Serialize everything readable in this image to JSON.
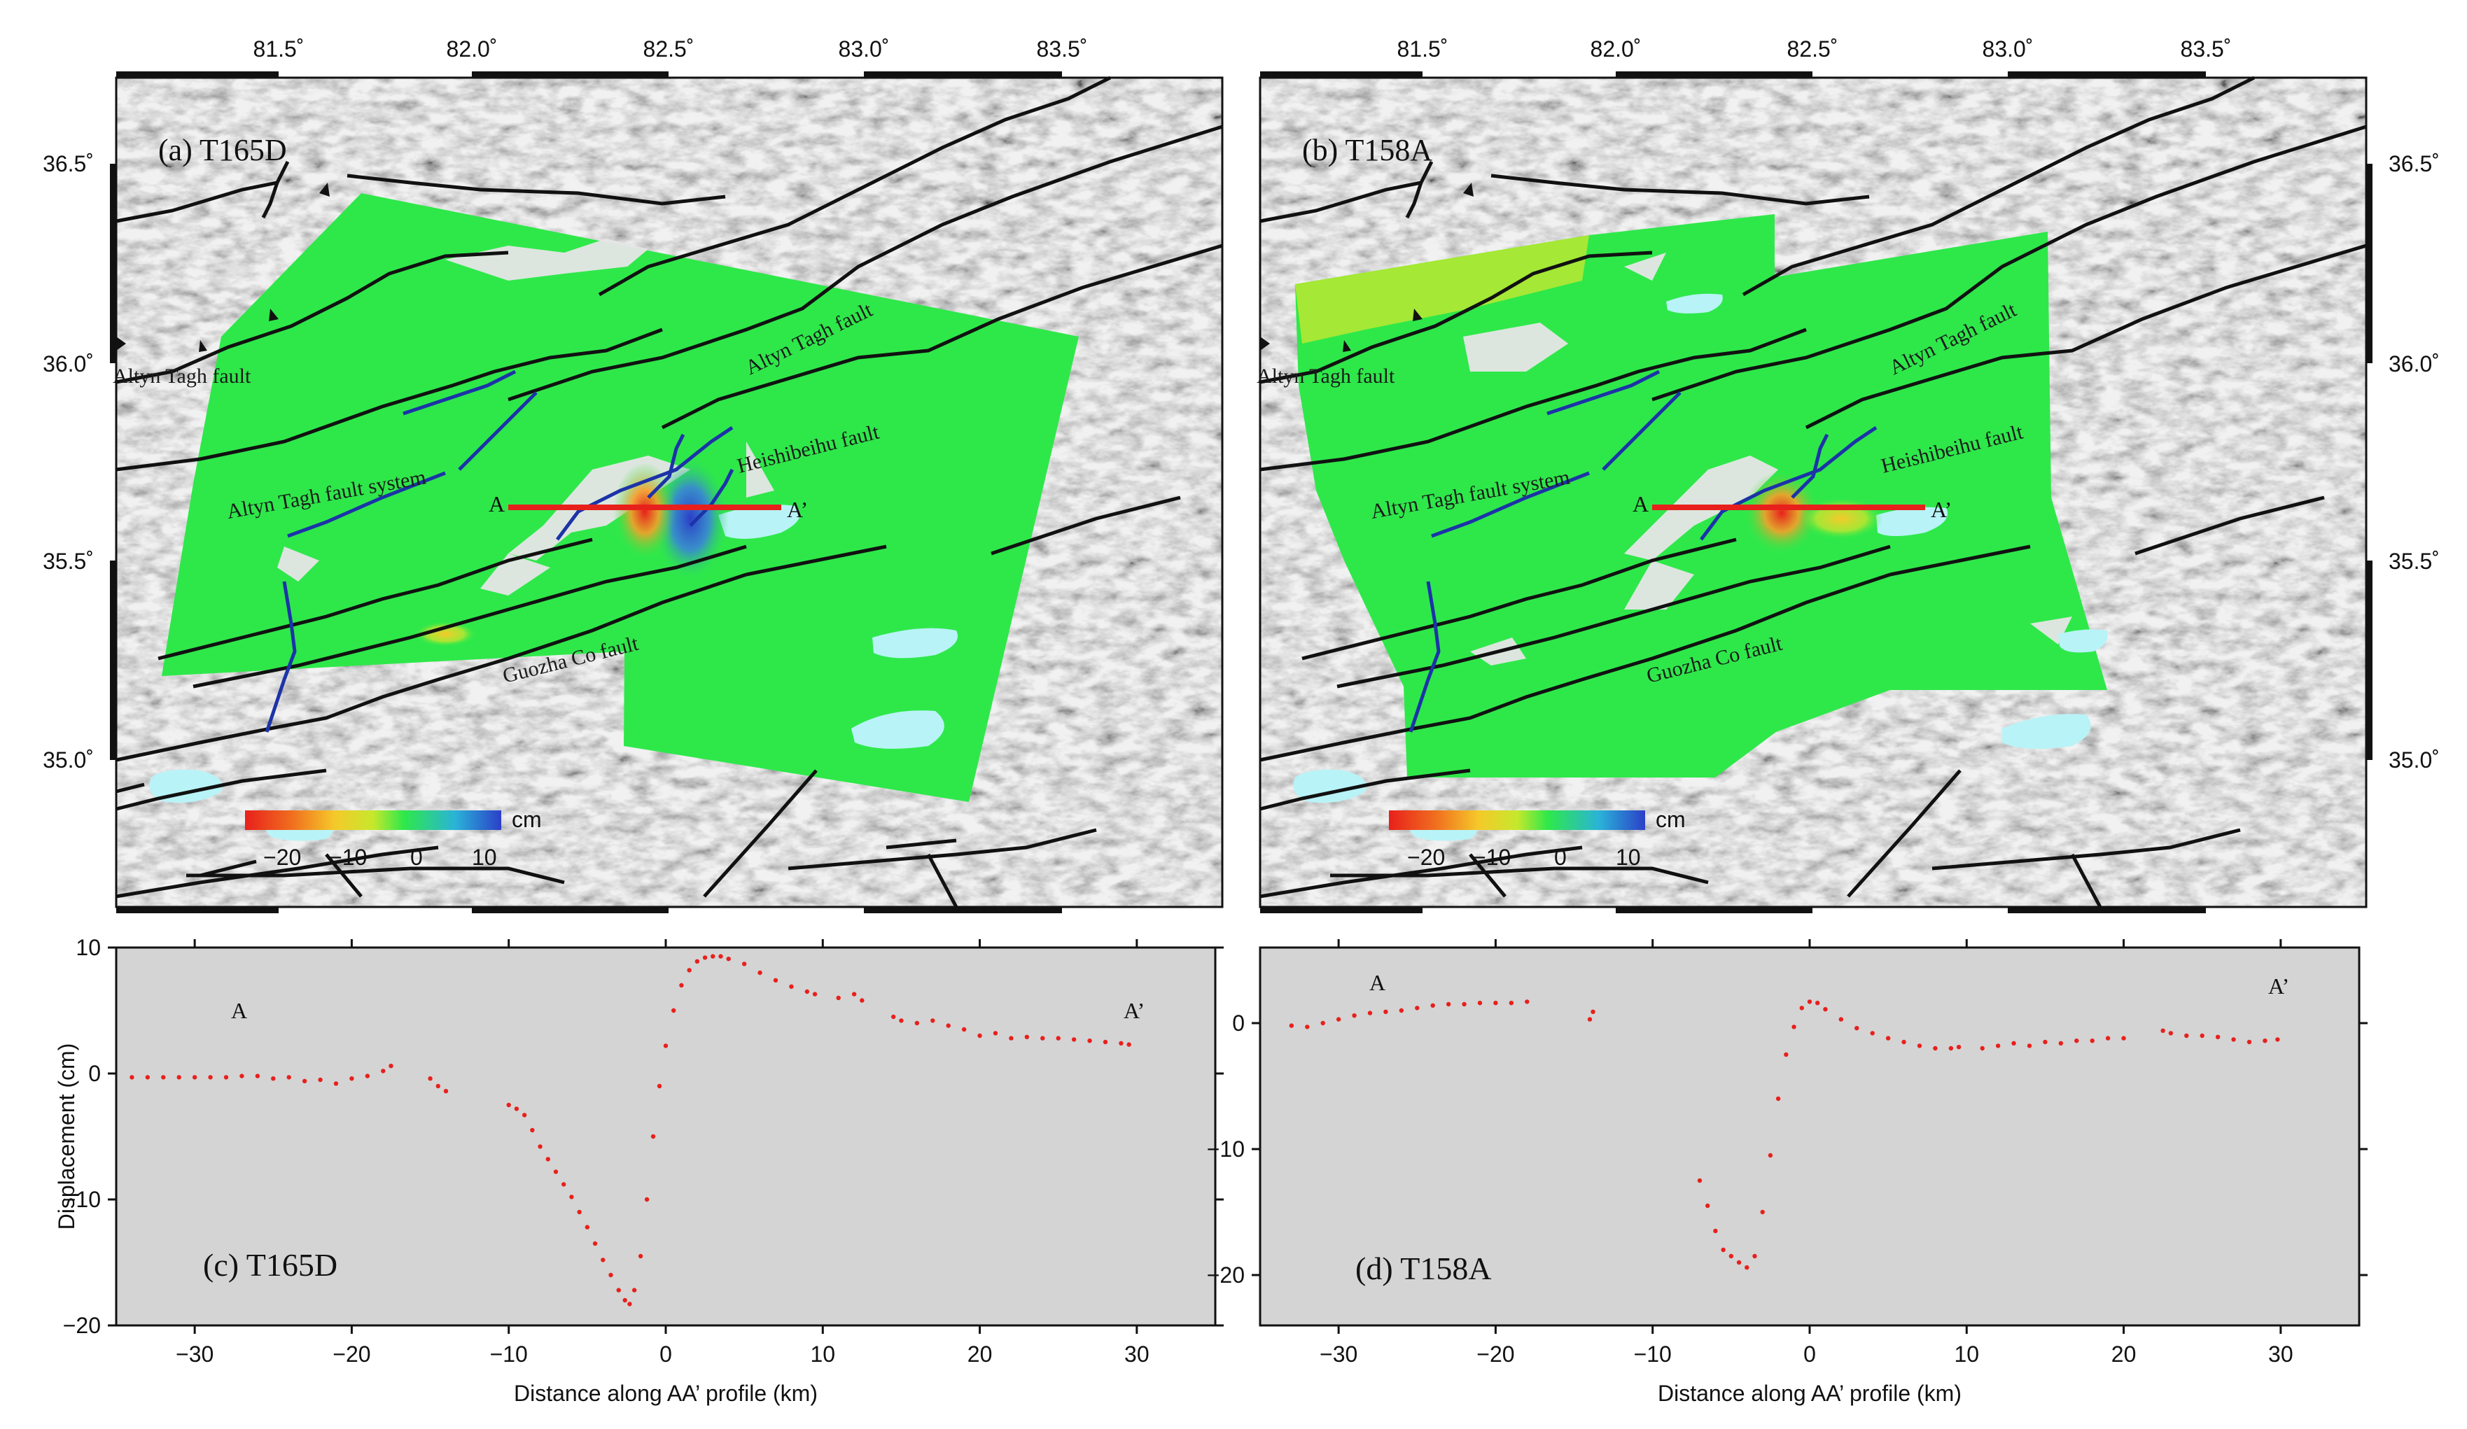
{
  "maps": [
    {
      "label": "(a) T165D",
      "lon_ticks": [
        "81.5˚",
        "82.0˚",
        "82.5˚",
        "83.0˚",
        "83.5˚"
      ],
      "lat_ticks": [
        "36.5˚",
        "36.0˚",
        "35.5˚",
        "35.0˚"
      ],
      "faults": {
        "altyn_tagh_fault_w": "Altyn Tagh fault",
        "altyn_tagh_fault_e": "Altyn Tagh fault",
        "altyn_tagh_fault_system": "Altyn Tagh fault system",
        "heishibeihu_fault": "Heishibeihu fault",
        "guozha_co_fault": "Guozha Co fault"
      },
      "profile": {
        "start": "A",
        "end": "A’"
      },
      "colorbar": {
        "unit": "cm",
        "ticks": [
          "−20",
          "−10",
          "0",
          "10"
        ],
        "range": [
          -25,
          15
        ],
        "colors": [
          "#e8201c",
          "#f06d1e",
          "#f5c92a",
          "#c6e82c",
          "#2ee84a",
          "#2ab3d8",
          "#2b3fc8"
        ]
      }
    },
    {
      "label": "(b) T158A",
      "lon_ticks": [
        "81.5˚",
        "82.0˚",
        "82.5˚",
        "83.0˚",
        "83.5˚"
      ],
      "lat_ticks": [
        "36.5˚",
        "36.0˚",
        "35.5˚",
        "35.0˚"
      ],
      "faults": {
        "altyn_tagh_fault_w": "Altyn Tagh fault",
        "altyn_tagh_fault_e": "Altyn Tagh fault",
        "altyn_tagh_fault_system": "Altyn Tagh fault system",
        "heishibeihu_fault": "Heishibeihu fault",
        "guozha_co_fault": "Guozha Co fault"
      },
      "profile": {
        "start": "A",
        "end": "A’"
      },
      "colorbar": {
        "unit": "cm",
        "ticks": [
          "−20",
          "−10",
          "0",
          "10"
        ],
        "range": [
          -25,
          15
        ],
        "colors": [
          "#e8201c",
          "#f06d1e",
          "#f5c92a",
          "#c6e82c",
          "#2ee84a",
          "#2ab3d8",
          "#2b3fc8"
        ]
      }
    }
  ],
  "chart_data": [
    {
      "type": "scatter",
      "title": "(c) T165D",
      "xlabel": "Distance along AA’ profile (km)",
      "ylabel": "Displacement (cm)",
      "xlim": [
        -35,
        35
      ],
      "ylim": [
        -20,
        10
      ],
      "x_ticks": [
        -30,
        -20,
        -10,
        0,
        10,
        20,
        30
      ],
      "y_ticks": [
        -20,
        -10,
        0,
        10
      ],
      "end_labels": {
        "left": "A",
        "right": "A’"
      },
      "series": [
        {
          "name": "T165D",
          "color": "#e8201c",
          "points": [
            [
              -34,
              -0.3
            ],
            [
              -33,
              -0.3
            ],
            [
              -32,
              -0.3
            ],
            [
              -31,
              -0.3
            ],
            [
              -30,
              -0.3
            ],
            [
              -29,
              -0.3
            ],
            [
              -28,
              -0.3
            ],
            [
              -27,
              -0.2
            ],
            [
              -26,
              -0.2
            ],
            [
              -25,
              -0.4
            ],
            [
              -24,
              -0.3
            ],
            [
              -23,
              -0.6
            ],
            [
              -22,
              -0.5
            ],
            [
              -21,
              -0.8
            ],
            [
              -20,
              -0.4
            ],
            [
              -19,
              -0.2
            ],
            [
              -18,
              0.2
            ],
            [
              -17.5,
              0.6
            ],
            [
              -15,
              -0.4
            ],
            [
              -14.5,
              -1.0
            ],
            [
              -14,
              -1.4
            ],
            [
              -10,
              -2.5
            ],
            [
              -9.5,
              -2.8
            ],
            [
              -9,
              -3.3
            ],
            [
              -8.5,
              -4.5
            ],
            [
              -8,
              -5.8
            ],
            [
              -7.5,
              -6.8
            ],
            [
              -7,
              -7.8
            ],
            [
              -6.5,
              -8.8
            ],
            [
              -6,
              -9.8
            ],
            [
              -5.5,
              -11
            ],
            [
              -5,
              -12.2
            ],
            [
              -4.5,
              -13.5
            ],
            [
              -4,
              -14.8
            ],
            [
              -3.5,
              -16
            ],
            [
              -3,
              -17.2
            ],
            [
              -2.6,
              -18
            ],
            [
              -2.3,
              -18.3
            ],
            [
              -2,
              -17.2
            ],
            [
              -1.6,
              -14.5
            ],
            [
              -1.2,
              -10
            ],
            [
              -0.8,
              -5
            ],
            [
              -0.4,
              -1
            ],
            [
              0,
              2.2
            ],
            [
              0.5,
              5
            ],
            [
              1,
              7
            ],
            [
              1.5,
              8.2
            ],
            [
              2,
              8.9
            ],
            [
              2.5,
              9.2
            ],
            [
              3,
              9.3
            ],
            [
              3.5,
              9.3
            ],
            [
              4,
              9.1
            ],
            [
              5,
              8.7
            ],
            [
              6,
              8.0
            ],
            [
              7,
              7.4
            ],
            [
              8,
              6.9
            ],
            [
              9,
              6.5
            ],
            [
              9.5,
              6.3
            ],
            [
              11,
              6.0
            ],
            [
              12,
              6.3
            ],
            [
              12.5,
              5.8
            ],
            [
              14.5,
              4.5
            ],
            [
              15,
              4.2
            ],
            [
              16,
              4.0
            ],
            [
              17,
              4.2
            ],
            [
              18,
              3.8
            ],
            [
              19,
              3.5
            ],
            [
              20,
              3.0
            ],
            [
              21,
              3.2
            ],
            [
              22,
              2.8
            ],
            [
              23,
              2.9
            ],
            [
              24,
              2.8
            ],
            [
              25,
              2.8
            ],
            [
              26,
              2.7
            ],
            [
              27,
              2.6
            ],
            [
              28,
              2.5
            ],
            [
              29,
              2.4
            ],
            [
              29.5,
              2.3
            ]
          ]
        }
      ]
    },
    {
      "type": "scatter",
      "title": "(d) T158A",
      "xlabel": "Distance along AA’ profile (km)",
      "ylabel": "",
      "xlim": [
        -35,
        35
      ],
      "ylim": [
        -24,
        6
      ],
      "x_ticks": [
        -30,
        -20,
        -10,
        0,
        10,
        20,
        30
      ],
      "y_ticks": [
        -20,
        -10,
        0
      ],
      "end_labels": {
        "left": "A",
        "right": "A’"
      },
      "series": [
        {
          "name": "T158A",
          "color": "#e8201c",
          "points": [
            [
              -33,
              -0.2
            ],
            [
              -32,
              -0.3
            ],
            [
              -31,
              0
            ],
            [
              -30,
              0.3
            ],
            [
              -29,
              0.6
            ],
            [
              -28,
              0.8
            ],
            [
              -27,
              0.9
            ],
            [
              -26,
              1.0
            ],
            [
              -25,
              1.2
            ],
            [
              -24,
              1.4
            ],
            [
              -23,
              1.5
            ],
            [
              -22,
              1.5
            ],
            [
              -21,
              1.6
            ],
            [
              -20,
              1.6
            ],
            [
              -19,
              1.6
            ],
            [
              -18,
              1.7
            ],
            [
              -14,
              0.3
            ],
            [
              -13.8,
              0.9
            ],
            [
              -7,
              -12.5
            ],
            [
              -6.5,
              -14.5
            ],
            [
              -6,
              -16.5
            ],
            [
              -5.5,
              -18
            ],
            [
              -5,
              -18.5
            ],
            [
              -4.5,
              -19
            ],
            [
              -4,
              -19.4
            ],
            [
              -3.5,
              -18.5
            ],
            [
              -3,
              -15
            ],
            [
              -2.5,
              -10.5
            ],
            [
              -2,
              -6
            ],
            [
              -1.5,
              -2.5
            ],
            [
              -1,
              -0.3
            ],
            [
              -0.5,
              1.2
            ],
            [
              0,
              1.7
            ],
            [
              0.5,
              1.6
            ],
            [
              1,
              1.1
            ],
            [
              2,
              0.3
            ],
            [
              3,
              -0.4
            ],
            [
              4,
              -0.8
            ],
            [
              5,
              -1.2
            ],
            [
              6,
              -1.5
            ],
            [
              7,
              -1.8
            ],
            [
              8,
              -2.0
            ],
            [
              9,
              -2.0
            ],
            [
              9.5,
              -1.9
            ],
            [
              11,
              -2.0
            ],
            [
              12,
              -1.8
            ],
            [
              13,
              -1.6
            ],
            [
              14,
              -1.8
            ],
            [
              15,
              -1.5
            ],
            [
              16,
              -1.6
            ],
            [
              17,
              -1.4
            ],
            [
              18,
              -1.4
            ],
            [
              19,
              -1.2
            ],
            [
              20,
              -1.2
            ],
            [
              22.5,
              -0.6
            ],
            [
              23,
              -0.8
            ],
            [
              24,
              -1.0
            ],
            [
              25,
              -1.0
            ],
            [
              26,
              -1.1
            ],
            [
              27,
              -1.3
            ],
            [
              28,
              -1.5
            ],
            [
              29,
              -1.4
            ],
            [
              29.8,
              -1.3
            ]
          ]
        }
      ]
    }
  ]
}
